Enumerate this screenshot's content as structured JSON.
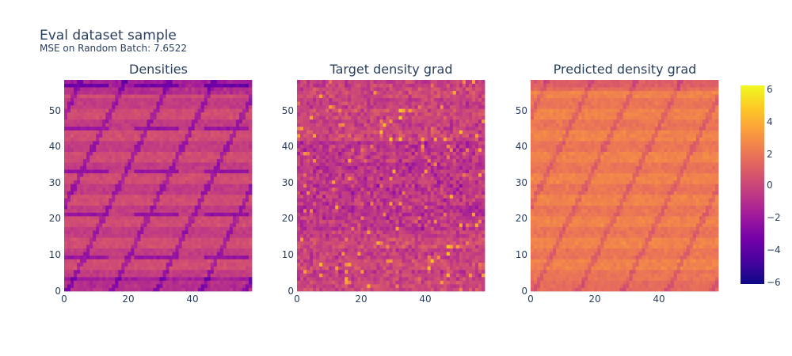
{
  "figure": {
    "title": "Eval dataset sample",
    "subtitle": "MSE on Random Batch: 7.6522"
  },
  "chart_data": {
    "type": "heatmap",
    "colorscale": "plasma",
    "colorscale_stops": [
      "#0d0887",
      "#46039f",
      "#7201a8",
      "#9c179e",
      "#bd3786",
      "#d8576b",
      "#ed7953",
      "#fb9f3a",
      "#fdca26",
      "#f0f921"
    ],
    "grid_size": [
      59,
      59
    ],
    "panels": [
      {
        "title": "Densities",
        "x_ticks": [
          "0",
          "20",
          "40"
        ],
        "y_ticks": [
          "0",
          "10",
          "20",
          "30",
          "40",
          "50"
        ],
        "mean_value": -0.3,
        "pattern": "diagonal-stripes"
      },
      {
        "title": "Target density grad",
        "x_ticks": [
          "0",
          "20",
          "40"
        ],
        "y_ticks": [
          "0",
          "10",
          "20",
          "30",
          "40",
          "50"
        ],
        "mean_value": -0.3,
        "pattern": "noisy"
      },
      {
        "title": "Predicted density grad",
        "x_ticks": [
          "0",
          "20",
          "40"
        ],
        "y_ticks": [
          "0",
          "10",
          "20",
          "30",
          "40",
          "50"
        ],
        "mean_value": 2.0,
        "pattern": "diagonal-stripes"
      }
    ],
    "colorbar": {
      "range": [
        -6.4,
        6.2
      ],
      "ticks": [
        "6",
        "4",
        "2",
        "0",
        "−2",
        "−4",
        "−6"
      ]
    }
  }
}
